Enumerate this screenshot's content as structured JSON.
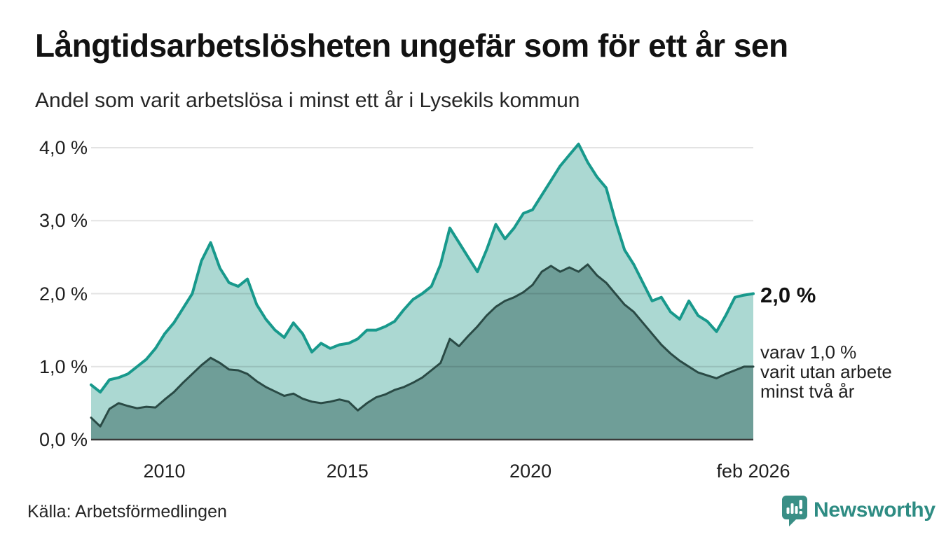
{
  "header": {
    "title": "Långtidsarbetslösheten ungefär som för ett år sen",
    "subtitle": "Andel som varit arbetslösa i minst ett år i Lysekils kommun"
  },
  "chart_data": {
    "type": "area",
    "title": "Långtidsarbetslösheten ungefär som för ett år sen",
    "subtitle": "Andel som varit arbetslösa i minst ett år i Lysekils kommun",
    "x_start": 2008.0,
    "x_end": 2026.083,
    "ylim": [
      0,
      4.0
    ],
    "grid": "horizontal",
    "y_ticks": [
      {
        "v": 0.0,
        "label": "0,0 %"
      },
      {
        "v": 1.0,
        "label": "1,0 %"
      },
      {
        "v": 2.0,
        "label": "2,0 %"
      },
      {
        "v": 3.0,
        "label": "3,0 %"
      },
      {
        "v": 4.0,
        "label": "4,0 %"
      }
    ],
    "x_ticks": [
      {
        "x": 2010,
        "label": "2010"
      },
      {
        "x": 2015,
        "label": "2015"
      },
      {
        "x": 2020,
        "label": "2020"
      },
      {
        "x": 2026.083,
        "label": "feb 2026"
      }
    ],
    "series": [
      {
        "name": "Arbetslösa minst ett år",
        "line_color": "#18998c",
        "fill_color": "#abd8d2",
        "line_width": 4,
        "latest_value": 2.0,
        "values": [
          0.75,
          0.65,
          0.82,
          0.85,
          0.9,
          1.0,
          1.1,
          1.25,
          1.45,
          1.6,
          1.8,
          2.0,
          2.45,
          2.7,
          2.35,
          2.15,
          2.1,
          2.2,
          1.85,
          1.65,
          1.5,
          1.4,
          1.6,
          1.45,
          1.2,
          1.32,
          1.25,
          1.3,
          1.32,
          1.38,
          1.5,
          1.5,
          1.55,
          1.62,
          1.78,
          1.92,
          2.0,
          2.1,
          2.4,
          2.9,
          2.7,
          2.5,
          2.3,
          2.6,
          2.95,
          2.75,
          2.9,
          3.1,
          3.15,
          3.35,
          3.55,
          3.75,
          3.9,
          4.05,
          3.8,
          3.6,
          3.45,
          3.0,
          2.6,
          2.4,
          2.15,
          1.9,
          1.95,
          1.75,
          1.65,
          1.9,
          1.7,
          1.62,
          1.48,
          1.7,
          1.95,
          1.98,
          2.0
        ]
      },
      {
        "name": "Varav utan arbete minst två år",
        "line_color": "#2a4a45",
        "fill_color": "#6f9e98",
        "line_width": 3,
        "latest_value": 1.0,
        "values": [
          0.3,
          0.18,
          0.42,
          0.5,
          0.46,
          0.43,
          0.45,
          0.44,
          0.55,
          0.65,
          0.78,
          0.9,
          1.02,
          1.12,
          1.05,
          0.96,
          0.95,
          0.9,
          0.8,
          0.72,
          0.66,
          0.6,
          0.63,
          0.56,
          0.52,
          0.5,
          0.52,
          0.55,
          0.52,
          0.4,
          0.5,
          0.58,
          0.62,
          0.68,
          0.72,
          0.78,
          0.85,
          0.95,
          1.05,
          1.38,
          1.28,
          1.42,
          1.55,
          1.7,
          1.82,
          1.9,
          1.95,
          2.02,
          2.12,
          2.3,
          2.38,
          2.3,
          2.36,
          2.3,
          2.4,
          2.25,
          2.15,
          2.0,
          1.85,
          1.75,
          1.6,
          1.45,
          1.3,
          1.18,
          1.08,
          1.0,
          0.92,
          0.88,
          0.84,
          0.9,
          0.95,
          1.0,
          1.0
        ]
      }
    ],
    "annotations": {
      "latest_label": "2,0 %",
      "secondary_lines": [
        "varav 1,0 %",
        "varit utan arbete",
        "minst två år"
      ]
    },
    "colors": {
      "gridline": "rgba(0,0,0,0.11)",
      "baseline": "#3a3a3a",
      "accent_teal": "#18998c"
    }
  },
  "footer": {
    "source": "Källa: Arbetsförmedlingen",
    "brand": "Newsworthy",
    "brand_color": "#2e8c83",
    "brand_icon": "speech-bubble-bar-chart-icon"
  }
}
